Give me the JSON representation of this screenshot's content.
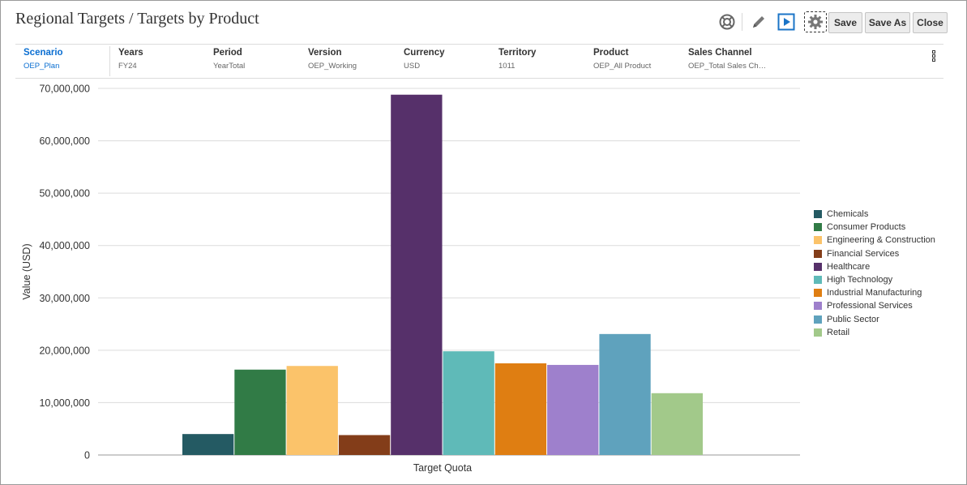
{
  "header": {
    "title": "Regional Targets / Targets by Product",
    "buttons": {
      "save": "Save",
      "save_as": "Save As",
      "close": "Close"
    },
    "icons": [
      "help-icon",
      "edit-icon",
      "run-icon",
      "settings-icon"
    ]
  },
  "pov": [
    {
      "name": "Scenario",
      "value": "OEP_Plan",
      "active": true
    },
    {
      "name": "Years",
      "value": "FY24"
    },
    {
      "name": "Period",
      "value": "YearTotal"
    },
    {
      "name": "Version",
      "value": "OEP_Working"
    },
    {
      "name": "Currency",
      "value": "USD"
    },
    {
      "name": "Territory",
      "value": "1011"
    },
    {
      "name": "Product",
      "value": "OEP_All Product"
    },
    {
      "name": "Sales Channel",
      "value": "OEP_Total Sales Ch…"
    }
  ],
  "colors": {
    "accent": "#0a6ed1",
    "run_icon": "#1b74c7"
  },
  "chart_data": {
    "type": "bar",
    "categories": [
      "Target Quota"
    ],
    "xlabel": "Target Quota",
    "ylabel": "Value (USD)",
    "ylim": [
      0,
      70000000
    ],
    "yticks": [
      0,
      10000000,
      20000000,
      30000000,
      40000000,
      50000000,
      60000000,
      70000000
    ],
    "ytick_labels": [
      "0",
      "10,000,000",
      "20,000,000",
      "30,000,000",
      "40,000,000",
      "50,000,000",
      "60,000,000",
      "70,000,000"
    ],
    "grid": true,
    "legend_position": "right",
    "series": [
      {
        "name": "Chemicals",
        "values": [
          4000000
        ],
        "color": "#245a63"
      },
      {
        "name": "Consumer Products",
        "values": [
          16300000
        ],
        "color": "#317b46"
      },
      {
        "name": "Engineering & Construction",
        "values": [
          17000000
        ],
        "color": "#fbc36a"
      },
      {
        "name": "Financial Services",
        "values": [
          3800000
        ],
        "color": "#833d19"
      },
      {
        "name": "Healthcare",
        "values": [
          68800000
        ],
        "color": "#56306a"
      },
      {
        "name": "High Technology",
        "values": [
          19800000
        ],
        "color": "#5fbab8"
      },
      {
        "name": "Industrial Manufacturing",
        "values": [
          17500000
        ],
        "color": "#df7e12"
      },
      {
        "name": "Professional Services",
        "values": [
          17200000
        ],
        "color": "#9e80cc"
      },
      {
        "name": "Public Sector",
        "values": [
          23100000
        ],
        "color": "#5fa2bd"
      },
      {
        "name": "Retail",
        "values": [
          11800000
        ],
        "color": "#a2c98a"
      }
    ]
  }
}
